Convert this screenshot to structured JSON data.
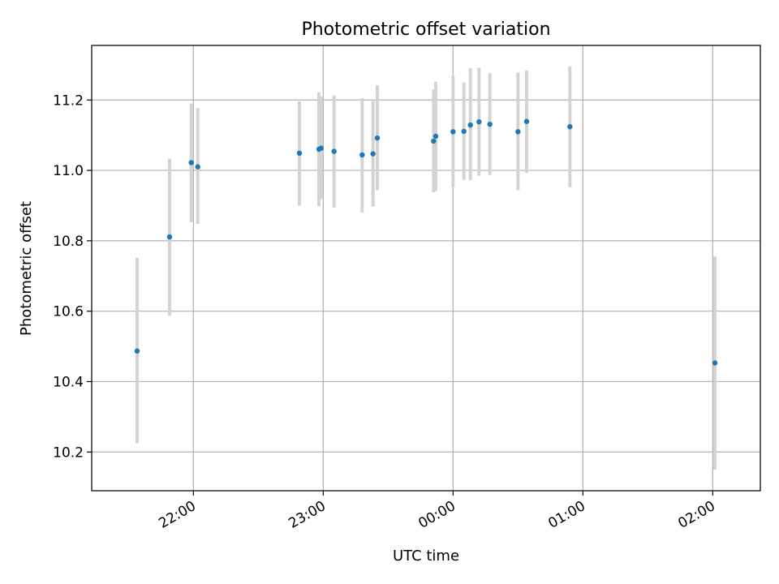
{
  "chart_data": {
    "type": "scatter",
    "title": "Photometric offset variation",
    "xlabel": "UTC time",
    "ylabel": "Photometric offset",
    "x_axis_type": "time",
    "xlim": [
      "21:13",
      "02:22"
    ],
    "ylim": [
      10.09,
      11.355
    ],
    "grid": true,
    "legend": "none",
    "x_ticks": [
      "22:00",
      "23:00",
      "00:00",
      "01:00",
      "02:00"
    ],
    "y_ticks": [
      "10.2",
      "10.4",
      "10.6",
      "10.8",
      "11.0",
      "11.2"
    ],
    "colors": {
      "point": "#1f77b4",
      "errorbar": "#d3d3d3",
      "grid": "#b0b0b0"
    },
    "points": [
      {
        "time": "21:34",
        "y": 10.487,
        "low": 10.225,
        "high": 10.752
      },
      {
        "time": "21:49",
        "y": 10.811,
        "low": 10.587,
        "high": 11.033
      },
      {
        "time": "21:59",
        "y": 11.022,
        "low": 10.853,
        "high": 11.19
      },
      {
        "time": "22:02",
        "y": 11.01,
        "low": 10.848,
        "high": 11.177
      },
      {
        "time": "22:49",
        "y": 11.049,
        "low": 10.9,
        "high": 11.196
      },
      {
        "time": "22:58",
        "y": 11.06,
        "low": 10.898,
        "high": 11.222
      },
      {
        "time": "22:59",
        "y": 11.063,
        "low": 10.918,
        "high": 11.21
      },
      {
        "time": "23:05",
        "y": 11.054,
        "low": 10.894,
        "high": 11.213
      },
      {
        "time": "23:18",
        "y": 11.044,
        "low": 10.88,
        "high": 11.205
      },
      {
        "time": "23:23",
        "y": 11.047,
        "low": 10.897,
        "high": 11.197
      },
      {
        "time": "23:25",
        "y": 11.092,
        "low": 10.944,
        "high": 11.242
      },
      {
        "time": "23:51",
        "y": 11.083,
        "low": 10.938,
        "high": 11.23
      },
      {
        "time": "23:52",
        "y": 11.097,
        "low": 10.942,
        "high": 11.252
      },
      {
        "time": "00:00",
        "y": 11.11,
        "low": 10.952,
        "high": 11.268
      },
      {
        "time": "00:05",
        "y": 11.111,
        "low": 10.973,
        "high": 11.25
      },
      {
        "time": "00:08",
        "y": 11.129,
        "low": 10.972,
        "high": 11.29
      },
      {
        "time": "00:12",
        "y": 11.138,
        "low": 10.985,
        "high": 11.292
      },
      {
        "time": "00:17",
        "y": 11.131,
        "low": 10.987,
        "high": 11.276
      },
      {
        "time": "00:30",
        "y": 11.11,
        "low": 10.944,
        "high": 11.278
      },
      {
        "time": "00:34",
        "y": 11.139,
        "low": 10.993,
        "high": 11.284
      },
      {
        "time": "00:54",
        "y": 11.124,
        "low": 10.952,
        "high": 11.296
      },
      {
        "time": "02:01",
        "y": 10.453,
        "low": 10.15,
        "high": 10.755
      }
    ]
  }
}
